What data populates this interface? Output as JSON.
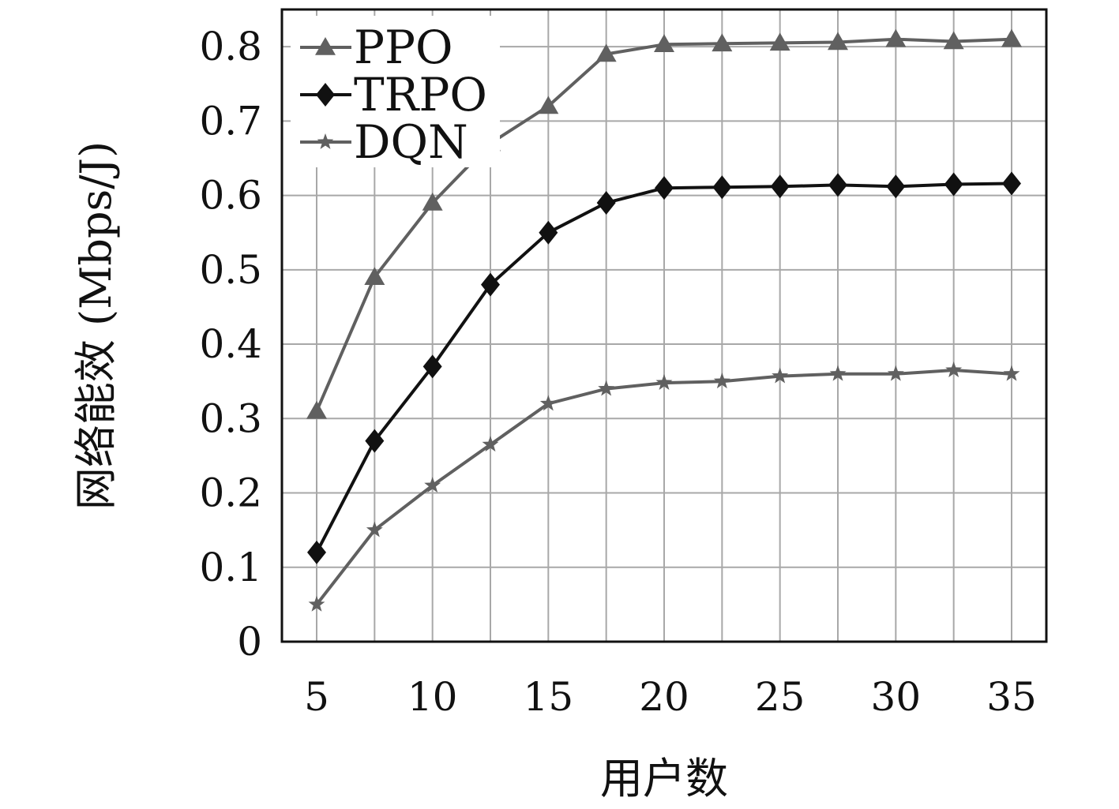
{
  "chart_data": {
    "type": "line",
    "xlabel": "用户数",
    "ylabel": "网络能效 (Mbps/J)",
    "x": [
      5,
      7.5,
      10,
      12.5,
      15,
      17.5,
      20,
      22.5,
      25,
      27.5,
      30,
      32.5,
      35
    ],
    "xlim": [
      3.5,
      36.5
    ],
    "ylim": [
      0,
      0.85
    ],
    "xticks": [
      5,
      10,
      15,
      20,
      25,
      30,
      35
    ],
    "xtick_labels": [
      "5",
      "10",
      "15",
      "20",
      "25",
      "30",
      "35"
    ],
    "yticks": [
      0,
      0.1,
      0.2,
      0.3,
      0.4,
      0.5,
      0.6,
      0.7,
      0.8
    ],
    "ytick_labels": [
      "0",
      "0.1",
      "0.2",
      "0.3",
      "0.4",
      "0.5",
      "0.6",
      "0.7",
      "0.8"
    ],
    "grid": true,
    "legend_position": "top-left",
    "series": [
      {
        "name": "PPO",
        "marker": "triangle",
        "color": "#606060",
        "values": [
          0.31,
          0.49,
          0.59,
          0.67,
          0.72,
          0.79,
          0.803,
          0.804,
          0.805,
          0.806,
          0.81,
          0.807,
          0.81
        ]
      },
      {
        "name": "TRPO",
        "marker": "diamond",
        "color": "#111111",
        "values": [
          0.12,
          0.27,
          0.37,
          0.48,
          0.55,
          0.59,
          0.61,
          0.611,
          0.612,
          0.614,
          0.612,
          0.615,
          0.616
        ]
      },
      {
        "name": "DQN",
        "marker": "star",
        "color": "#606060",
        "values": [
          0.05,
          0.15,
          0.21,
          0.265,
          0.32,
          0.34,
          0.348,
          0.35,
          0.357,
          0.36,
          0.36,
          0.365,
          0.36
        ]
      }
    ]
  }
}
